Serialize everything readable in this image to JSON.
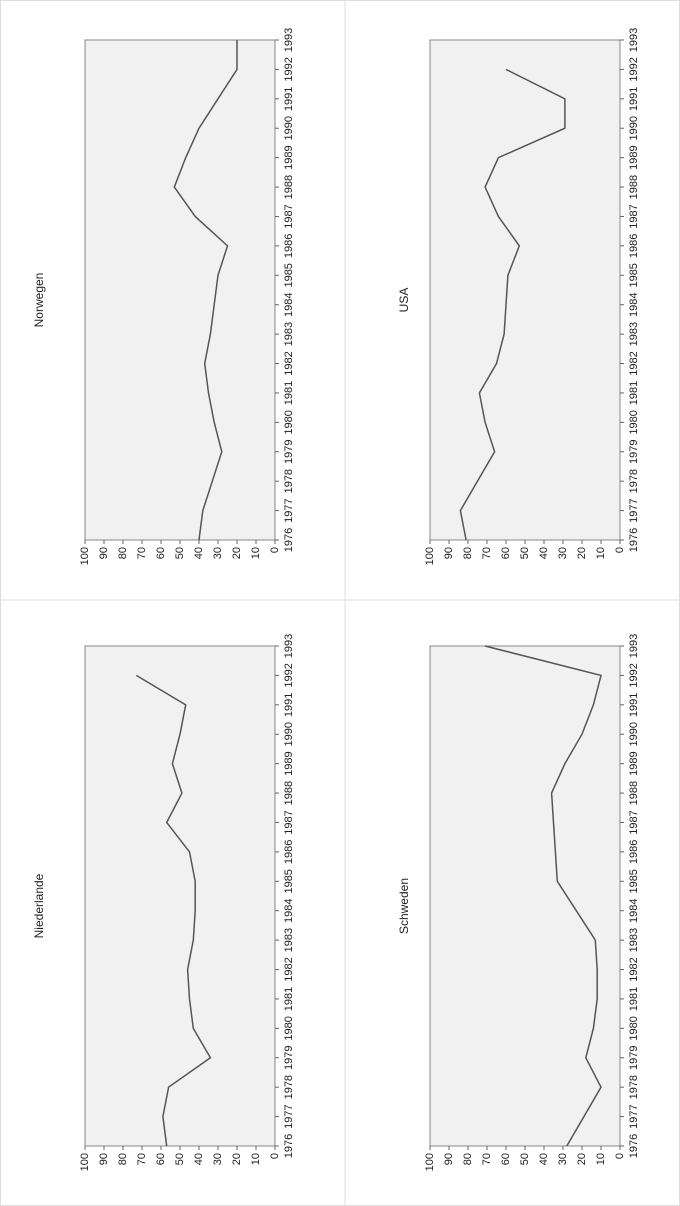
{
  "chart_data": [
    {
      "type": "line",
      "title": "Norwegen",
      "categories": [
        "1976",
        "1977",
        "1978",
        "1979",
        "1980",
        "1981",
        "1982",
        "1983",
        "1984",
        "1985",
        "1986",
        "1987",
        "1988",
        "1989",
        "1990",
        "1991",
        "1992",
        "1993"
      ],
      "values": [
        40,
        38,
        33,
        28,
        32,
        35,
        37,
        34,
        32,
        30,
        25,
        42,
        53,
        47,
        40,
        30,
        20,
        20
      ],
      "color": "#555555",
      "ylim": [
        0,
        100
      ],
      "yticks": [
        0,
        10,
        20,
        30,
        40,
        50,
        60,
        70,
        80,
        90,
        100
      ]
    },
    {
      "type": "line",
      "title": "USA",
      "categories": [
        "1976",
        "1977",
        "1978",
        "1979",
        "1980",
        "1981",
        "1982",
        "1983",
        "1984",
        "1985",
        "1986",
        "1987",
        "1988",
        "1989",
        "1990",
        "1991",
        "1992",
        "1993"
      ],
      "values": [
        81,
        84,
        75,
        66,
        71,
        74,
        65,
        61,
        60,
        59,
        53,
        64,
        71,
        64,
        29,
        29,
        60,
        null
      ],
      "color": "#555555",
      "ylim": [
        0,
        100
      ],
      "yticks": [
        0,
        10,
        20,
        30,
        40,
        50,
        60,
        70,
        80,
        90,
        100
      ]
    },
    {
      "type": "line",
      "title": "Niederlande",
      "categories": [
        "1976",
        "1977",
        "1978",
        "1979",
        "1980",
        "1981",
        "1982",
        "1983",
        "1984",
        "1985",
        "1986",
        "1987",
        "1988",
        "1989",
        "1990",
        "1991",
        "1992",
        "1993"
      ],
      "values": [
        57,
        59,
        56,
        34,
        43,
        45,
        46,
        43,
        42,
        42,
        45,
        57,
        49,
        54,
        50,
        47,
        73,
        null
      ],
      "color": "#555555",
      "ylim": [
        0,
        100
      ],
      "yticks": [
        0,
        10,
        20,
        30,
        40,
        50,
        60,
        70,
        80,
        90,
        100
      ]
    },
    {
      "type": "line",
      "title": "Schweden",
      "categories": [
        "1976",
        "1977",
        "1978",
        "1979",
        "1980",
        "1981",
        "1982",
        "1983",
        "1984",
        "1985",
        "1986",
        "1987",
        "1988",
        "1989",
        "1990",
        "1991",
        "1992",
        "1993"
      ],
      "values": [
        28,
        19,
        10,
        18,
        14,
        12,
        12,
        13,
        23,
        33,
        34,
        35,
        36,
        29,
        20,
        14,
        10,
        71
      ],
      "color": "#555555",
      "ylim": [
        0,
        100
      ],
      "yticks": [
        0,
        10,
        20,
        30,
        40,
        50,
        60,
        70,
        80,
        90,
        100
      ]
    }
  ]
}
